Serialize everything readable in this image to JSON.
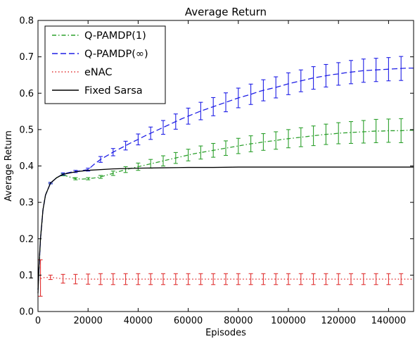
{
  "chart_data": {
    "type": "line",
    "title": "Average Return",
    "xlabel": "Episodes",
    "ylabel": "Average Return",
    "xlim": [
      0,
      150000
    ],
    "ylim": [
      0.0,
      0.8
    ],
    "grid": false,
    "legend_position": "top-left",
    "x_ticks": [
      0,
      20000,
      40000,
      60000,
      80000,
      100000,
      120000,
      140000
    ],
    "x_tick_labels": [
      "0",
      "20000",
      "40000",
      "60000",
      "80000",
      "100000",
      "120000",
      "140000"
    ],
    "y_ticks": [
      0.0,
      0.1,
      0.2,
      0.3,
      0.4,
      0.5,
      0.6,
      0.7,
      0.8
    ],
    "y_tick_labels": [
      "0.0",
      "0.1",
      "0.2",
      "0.3",
      "0.4",
      "0.5",
      "0.6",
      "0.7",
      "0.8"
    ],
    "series": [
      {
        "name": "Q-PAMDP(1)",
        "color": "#2ca02c",
        "style": "dashdot",
        "x": [
          0,
          1000,
          2000,
          3000,
          5000,
          7500,
          10000,
          12500,
          15000,
          17500,
          20000,
          22500,
          25000,
          27500,
          30000,
          32500,
          35000,
          37500,
          40000,
          42500,
          45000,
          47500,
          50000,
          52500,
          55000,
          57500,
          60000,
          62500,
          65000,
          67500,
          70000,
          72500,
          75000,
          77500,
          80000,
          82500,
          85000,
          87500,
          90000,
          92500,
          95000,
          97500,
          100000,
          102500,
          105000,
          107500,
          110000,
          112500,
          115000,
          117500,
          120000,
          122500,
          125000,
          127500,
          130000,
          132500,
          135000,
          137500,
          140000,
          142500,
          145000,
          147500,
          150000
        ],
        "y": [
          0.06,
          0.2,
          0.28,
          0.32,
          0.353,
          0.368,
          0.376,
          0.37,
          0.365,
          0.364,
          0.365,
          0.367,
          0.37,
          0.375,
          0.38,
          0.385,
          0.39,
          0.394,
          0.398,
          0.402,
          0.406,
          0.41,
          0.414,
          0.418,
          0.422,
          0.426,
          0.43,
          0.434,
          0.437,
          0.44,
          0.443,
          0.446,
          0.449,
          0.452,
          0.455,
          0.458,
          0.461,
          0.463,
          0.466,
          0.468,
          0.47,
          0.473,
          0.475,
          0.477,
          0.479,
          0.481,
          0.483,
          0.485,
          0.487,
          0.488,
          0.49,
          0.491,
          0.492,
          0.493,
          0.494,
          0.495,
          0.496,
          0.496,
          0.497,
          0.497,
          0.497,
          0.498,
          0.498
        ],
        "errorbars": {
          "x": [
            5000,
            10000,
            15000,
            20000,
            25000,
            30000,
            35000,
            40000,
            45000,
            50000,
            55000,
            60000,
            65000,
            70000,
            75000,
            80000,
            85000,
            90000,
            95000,
            100000,
            105000,
            110000,
            115000,
            120000,
            125000,
            130000,
            135000,
            140000,
            145000
          ],
          "y": [
            0.353,
            0.376,
            0.365,
            0.365,
            0.37,
            0.38,
            0.39,
            0.398,
            0.406,
            0.414,
            0.422,
            0.43,
            0.437,
            0.443,
            0.449,
            0.455,
            0.461,
            0.466,
            0.47,
            0.475,
            0.479,
            0.483,
            0.487,
            0.49,
            0.492,
            0.494,
            0.496,
            0.497,
            0.497
          ],
          "err": [
            0.002,
            0.003,
            0.003,
            0.003,
            0.004,
            0.006,
            0.008,
            0.01,
            0.012,
            0.014,
            0.015,
            0.016,
            0.018,
            0.019,
            0.02,
            0.021,
            0.022,
            0.023,
            0.024,
            0.025,
            0.026,
            0.027,
            0.028,
            0.029,
            0.03,
            0.031,
            0.032,
            0.032,
            0.033
          ]
        }
      },
      {
        "name": "Q-PAMDP(∞)",
        "color": "#1f1fe6",
        "style": "dashed",
        "x": [
          0,
          1000,
          2000,
          3000,
          5000,
          7500,
          10000,
          12500,
          15000,
          17500,
          20000,
          22500,
          25000,
          27500,
          30000,
          32500,
          35000,
          37500,
          40000,
          42500,
          45000,
          47500,
          50000,
          52500,
          55000,
          57500,
          60000,
          62500,
          65000,
          67500,
          70000,
          72500,
          75000,
          77500,
          80000,
          82500,
          85000,
          87500,
          90000,
          92500,
          95000,
          97500,
          100000,
          102500,
          105000,
          107500,
          110000,
          112500,
          115000,
          117500,
          120000,
          122500,
          125000,
          127500,
          130000,
          132500,
          135000,
          137500,
          140000,
          142500,
          145000,
          147500,
          150000
        ],
        "y": [
          0.06,
          0.2,
          0.28,
          0.32,
          0.353,
          0.368,
          0.378,
          0.382,
          0.385,
          0.387,
          0.39,
          0.405,
          0.418,
          0.428,
          0.438,
          0.447,
          0.456,
          0.465,
          0.473,
          0.482,
          0.49,
          0.498,
          0.506,
          0.514,
          0.522,
          0.53,
          0.537,
          0.544,
          0.551,
          0.557,
          0.563,
          0.569,
          0.575,
          0.581,
          0.587,
          0.592,
          0.597,
          0.603,
          0.608,
          0.612,
          0.616,
          0.621,
          0.626,
          0.63,
          0.634,
          0.638,
          0.642,
          0.645,
          0.648,
          0.651,
          0.653,
          0.656,
          0.658,
          0.66,
          0.662,
          0.663,
          0.664,
          0.665,
          0.666,
          0.667,
          0.668,
          0.669,
          0.669
        ],
        "errorbars": {
          "x": [
            5000,
            10000,
            15000,
            20000,
            25000,
            30000,
            35000,
            40000,
            45000,
            50000,
            55000,
            60000,
            65000,
            70000,
            75000,
            80000,
            85000,
            90000,
            95000,
            100000,
            105000,
            110000,
            115000,
            120000,
            125000,
            130000,
            135000,
            140000,
            145000
          ],
          "y": [
            0.353,
            0.378,
            0.385,
            0.39,
            0.418,
            0.438,
            0.456,
            0.473,
            0.49,
            0.506,
            0.522,
            0.537,
            0.551,
            0.563,
            0.575,
            0.587,
            0.597,
            0.608,
            0.616,
            0.626,
            0.634,
            0.642,
            0.648,
            0.653,
            0.658,
            0.662,
            0.664,
            0.666,
            0.668
          ],
          "err": [
            0.002,
            0.003,
            0.003,
            0.004,
            0.008,
            0.01,
            0.012,
            0.015,
            0.017,
            0.019,
            0.021,
            0.022,
            0.024,
            0.025,
            0.026,
            0.027,
            0.028,
            0.029,
            0.029,
            0.03,
            0.03,
            0.031,
            0.031,
            0.031,
            0.032,
            0.032,
            0.032,
            0.032,
            0.033
          ]
        }
      },
      {
        "name": "eNAC",
        "color": "#e03030",
        "style": "dotted",
        "x": [
          0,
          1000,
          2000,
          5000,
          10000,
          20000,
          30000,
          40000,
          50000,
          60000,
          70000,
          80000,
          90000,
          100000,
          110000,
          120000,
          130000,
          140000,
          150000
        ],
        "y": [
          0.085,
          0.09,
          0.093,
          0.094,
          0.09,
          0.089,
          0.089,
          0.089,
          0.089,
          0.089,
          0.089,
          0.089,
          0.089,
          0.089,
          0.089,
          0.089,
          0.089,
          0.089,
          0.089
        ],
        "errorbars": {
          "x": [
            1000,
            5000,
            10000,
            15000,
            20000,
            25000,
            30000,
            35000,
            40000,
            45000,
            50000,
            55000,
            60000,
            65000,
            70000,
            75000,
            80000,
            85000,
            90000,
            95000,
            100000,
            105000,
            110000,
            115000,
            120000,
            125000,
            130000,
            135000,
            140000,
            145000
          ],
          "y": [
            0.092,
            0.094,
            0.09,
            0.089,
            0.089,
            0.089,
            0.089,
            0.089,
            0.089,
            0.089,
            0.089,
            0.089,
            0.089,
            0.089,
            0.089,
            0.089,
            0.089,
            0.089,
            0.089,
            0.089,
            0.089,
            0.089,
            0.089,
            0.089,
            0.089,
            0.089,
            0.089,
            0.089,
            0.089,
            0.089
          ],
          "err": [
            0.05,
            0.006,
            0.012,
            0.013,
            0.014,
            0.015,
            0.015,
            0.015,
            0.015,
            0.015,
            0.015,
            0.015,
            0.015,
            0.015,
            0.015,
            0.015,
            0.015,
            0.015,
            0.015,
            0.015,
            0.015,
            0.015,
            0.015,
            0.015,
            0.015,
            0.015,
            0.015,
            0.015,
            0.015,
            0.015
          ]
        }
      },
      {
        "name": "Fixed Sarsa",
        "color": "#000000",
        "style": "solid",
        "x": [
          0,
          500,
          1000,
          2000,
          3000,
          5000,
          7500,
          10000,
          15000,
          20000,
          30000,
          40000,
          50000,
          60000,
          70000,
          80000,
          90000,
          100000,
          110000,
          120000,
          130000,
          140000,
          150000
        ],
        "y": [
          0.05,
          0.14,
          0.2,
          0.28,
          0.32,
          0.353,
          0.368,
          0.377,
          0.384,
          0.388,
          0.392,
          0.394,
          0.395,
          0.396,
          0.396,
          0.397,
          0.397,
          0.397,
          0.397,
          0.397,
          0.397,
          0.397,
          0.397
        ]
      }
    ]
  }
}
